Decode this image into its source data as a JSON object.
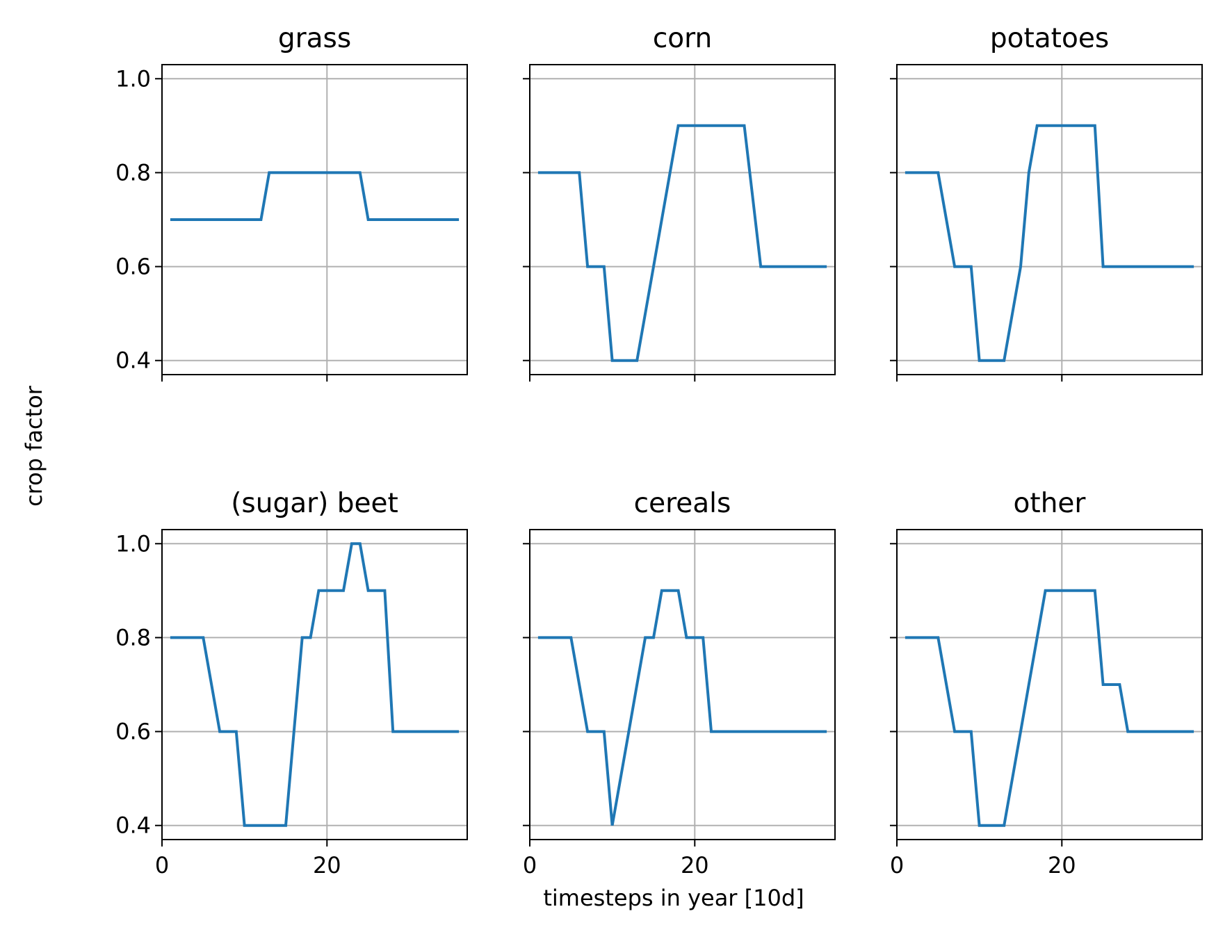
{
  "figure": {
    "xlabel": "timesteps in year [10d]",
    "ylabel": "crop factor"
  },
  "colors": {
    "line": "#1f77b4",
    "grid": "#b0b0b0",
    "axes": "#000000"
  },
  "chart_data": [
    {
      "type": "line",
      "title": "grass",
      "xlim": [
        0,
        37
      ],
      "ylim": [
        0.37,
        1.03
      ],
      "xticks": [
        0,
        20
      ],
      "yticks": [
        0.4,
        0.6,
        0.8,
        1.0
      ],
      "grid": true,
      "x": [
        1,
        2,
        3,
        4,
        5,
        6,
        7,
        8,
        9,
        10,
        11,
        12,
        13,
        14,
        15,
        16,
        17,
        18,
        19,
        20,
        21,
        22,
        23,
        24,
        25,
        26,
        27,
        28,
        29,
        30,
        31,
        32,
        33,
        34,
        35,
        36
      ],
      "values": [
        0.7,
        0.7,
        0.7,
        0.7,
        0.7,
        0.7,
        0.7,
        0.7,
        0.7,
        0.7,
        0.7,
        0.7,
        0.8,
        0.8,
        0.8,
        0.8,
        0.8,
        0.8,
        0.8,
        0.8,
        0.8,
        0.8,
        0.8,
        0.8,
        0.7,
        0.7,
        0.7,
        0.7,
        0.7,
        0.7,
        0.7,
        0.7,
        0.7,
        0.7,
        0.7,
        0.7
      ]
    },
    {
      "type": "line",
      "title": "corn",
      "xlim": [
        0,
        37
      ],
      "ylim": [
        0.37,
        1.03
      ],
      "xticks": [
        0,
        20
      ],
      "yticks": [
        0.4,
        0.6,
        0.8,
        1.0
      ],
      "grid": true,
      "x": [
        1,
        2,
        3,
        4,
        5,
        6,
        7,
        8,
        9,
        10,
        11,
        12,
        13,
        14,
        15,
        16,
        17,
        18,
        19,
        20,
        21,
        22,
        23,
        24,
        25,
        26,
        27,
        28,
        29,
        30,
        31,
        32,
        33,
        34,
        35,
        36
      ],
      "values": [
        0.8,
        0.8,
        0.8,
        0.8,
        0.8,
        0.8,
        0.6,
        0.6,
        0.6,
        0.4,
        0.4,
        0.4,
        0.4,
        0.5,
        0.6,
        0.7,
        0.8,
        0.9,
        0.9,
        0.9,
        0.9,
        0.9,
        0.9,
        0.9,
        0.9,
        0.9,
        0.75,
        0.6,
        0.6,
        0.6,
        0.6,
        0.6,
        0.6,
        0.6,
        0.6,
        0.6
      ]
    },
    {
      "type": "line",
      "title": "potatoes",
      "xlim": [
        0,
        37
      ],
      "ylim": [
        0.37,
        1.03
      ],
      "xticks": [
        0,
        20
      ],
      "yticks": [
        0.4,
        0.6,
        0.8,
        1.0
      ],
      "grid": true,
      "x": [
        1,
        2,
        3,
        4,
        5,
        6,
        7,
        8,
        9,
        10,
        11,
        12,
        13,
        14,
        15,
        16,
        17,
        18,
        19,
        20,
        21,
        22,
        23,
        24,
        25,
        26,
        27,
        28,
        29,
        30,
        31,
        32,
        33,
        34,
        35,
        36
      ],
      "values": [
        0.8,
        0.8,
        0.8,
        0.8,
        0.8,
        0.7,
        0.6,
        0.6,
        0.6,
        0.4,
        0.4,
        0.4,
        0.4,
        0.5,
        0.6,
        0.8,
        0.9,
        0.9,
        0.9,
        0.9,
        0.9,
        0.9,
        0.9,
        0.9,
        0.6,
        0.6,
        0.6,
        0.6,
        0.6,
        0.6,
        0.6,
        0.6,
        0.6,
        0.6,
        0.6,
        0.6
      ]
    },
    {
      "type": "line",
      "title": "(sugar) beet",
      "xlim": [
        0,
        37
      ],
      "ylim": [
        0.37,
        1.03
      ],
      "xticks": [
        0,
        20
      ],
      "yticks": [
        0.4,
        0.6,
        0.8,
        1.0
      ],
      "grid": true,
      "x": [
        1,
        2,
        3,
        4,
        5,
        6,
        7,
        8,
        9,
        10,
        11,
        12,
        13,
        14,
        15,
        16,
        17,
        18,
        19,
        20,
        21,
        22,
        23,
        24,
        25,
        26,
        27,
        28,
        29,
        30,
        31,
        32,
        33,
        34,
        35,
        36
      ],
      "values": [
        0.8,
        0.8,
        0.8,
        0.8,
        0.8,
        0.7,
        0.6,
        0.6,
        0.6,
        0.4,
        0.4,
        0.4,
        0.4,
        0.4,
        0.4,
        0.6,
        0.8,
        0.8,
        0.9,
        0.9,
        0.9,
        0.9,
        1.0,
        1.0,
        0.9,
        0.9,
        0.9,
        0.6,
        0.6,
        0.6,
        0.6,
        0.6,
        0.6,
        0.6,
        0.6,
        0.6
      ]
    },
    {
      "type": "line",
      "title": "cereals",
      "xlim": [
        0,
        37
      ],
      "ylim": [
        0.37,
        1.03
      ],
      "xticks": [
        0,
        20
      ],
      "yticks": [
        0.4,
        0.6,
        0.8,
        1.0
      ],
      "grid": true,
      "x": [
        1,
        2,
        3,
        4,
        5,
        6,
        7,
        8,
        9,
        10,
        11,
        12,
        13,
        14,
        15,
        16,
        17,
        18,
        19,
        20,
        21,
        22,
        23,
        24,
        25,
        26,
        27,
        28,
        29,
        30,
        31,
        32,
        33,
        34,
        35,
        36
      ],
      "values": [
        0.8,
        0.8,
        0.8,
        0.8,
        0.8,
        0.7,
        0.6,
        0.6,
        0.6,
        0.4,
        0.5,
        0.6,
        0.7,
        0.8,
        0.8,
        0.9,
        0.9,
        0.9,
        0.8,
        0.8,
        0.8,
        0.6,
        0.6,
        0.6,
        0.6,
        0.6,
        0.6,
        0.6,
        0.6,
        0.6,
        0.6,
        0.6,
        0.6,
        0.6,
        0.6,
        0.6
      ]
    },
    {
      "type": "line",
      "title": "other",
      "xlim": [
        0,
        37
      ],
      "ylim": [
        0.37,
        1.03
      ],
      "xticks": [
        0,
        20
      ],
      "yticks": [
        0.4,
        0.6,
        0.8,
        1.0
      ],
      "grid": true,
      "x": [
        1,
        2,
        3,
        4,
        5,
        6,
        7,
        8,
        9,
        10,
        11,
        12,
        13,
        14,
        15,
        16,
        17,
        18,
        19,
        20,
        21,
        22,
        23,
        24,
        25,
        26,
        27,
        28,
        29,
        30,
        31,
        32,
        33,
        34,
        35,
        36
      ],
      "values": [
        0.8,
        0.8,
        0.8,
        0.8,
        0.8,
        0.7,
        0.6,
        0.6,
        0.6,
        0.4,
        0.4,
        0.4,
        0.4,
        0.5,
        0.6,
        0.7,
        0.8,
        0.9,
        0.9,
        0.9,
        0.9,
        0.9,
        0.9,
        0.9,
        0.7,
        0.7,
        0.7,
        0.6,
        0.6,
        0.6,
        0.6,
        0.6,
        0.6,
        0.6,
        0.6,
        0.6
      ]
    }
  ]
}
